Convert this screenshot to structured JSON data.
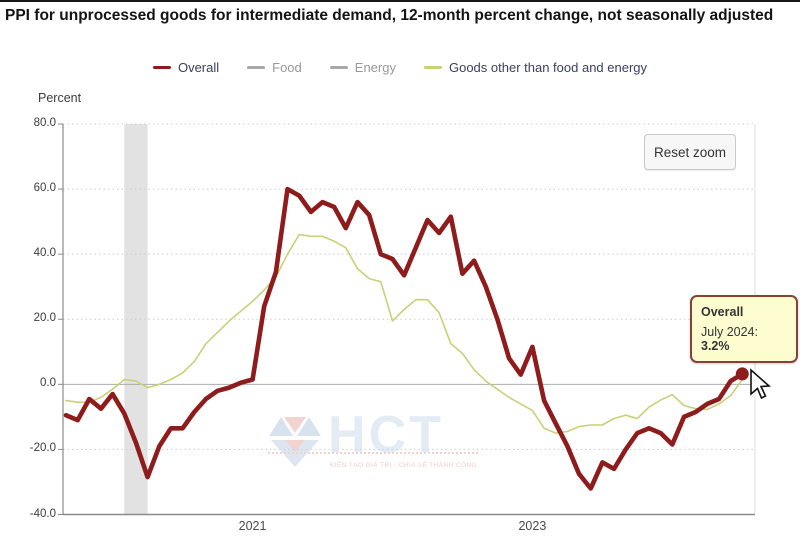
{
  "title": "PPI for unprocessed goods for intermediate demand, 12-month percent change, not seasonally adjusted",
  "legend": {
    "items": [
      {
        "label": "Overall",
        "slug": "overall",
        "swatch_color": "#8e1c1c",
        "text_color": "#3a3f5f",
        "active": true
      },
      {
        "label": "Food",
        "slug": "food",
        "swatch_color": "#a8a8a8",
        "text_color": "#999999",
        "active": false
      },
      {
        "label": "Energy",
        "slug": "energy",
        "swatch_color": "#a8a8a8",
        "text_color": "#999999",
        "active": false
      },
      {
        "label": "Goods other than food and energy",
        "slug": "goods-other",
        "swatch_color": "#c9d178",
        "text_color": "#3a3f5f",
        "active": true
      }
    ]
  },
  "y_axis": {
    "title": "Percent",
    "ticks": [
      "80.0",
      "60.0",
      "40.0",
      "20.0",
      "0.0",
      "-20.0",
      "-40.0"
    ]
  },
  "x_axis": {
    "ticks": [
      "2021",
      "2023"
    ]
  },
  "reset_zoom_label": "Reset zoom",
  "tooltip": {
    "series": "Overall",
    "date_label": "July 2024:",
    "value": "3.2%"
  },
  "watermark": {
    "text": "HCT",
    "tagline": "KIẾN TẠO GIÁ TRỊ - CHIA SẺ THÀNH CÔNG"
  },
  "chart_data": {
    "type": "line",
    "title": "PPI for unprocessed goods for intermediate demand, 12-month percent change, not seasonally adjusted",
    "ylabel": "Percent",
    "ylim": [
      -40,
      80
    ],
    "y_ticks": [
      80,
      60,
      40,
      20,
      0,
      -20,
      -40
    ],
    "grid": "horizontal-dotted",
    "legend_position": "top",
    "categories": [
      "2019-09",
      "2019-10",
      "2019-11",
      "2019-12",
      "2020-01",
      "2020-02",
      "2020-03",
      "2020-04",
      "2020-05",
      "2020-06",
      "2020-07",
      "2020-08",
      "2020-09",
      "2020-10",
      "2020-11",
      "2020-12",
      "2021-01",
      "2021-02",
      "2021-03",
      "2021-04",
      "2021-05",
      "2021-06",
      "2021-07",
      "2021-08",
      "2021-09",
      "2021-10",
      "2021-11",
      "2021-12",
      "2022-01",
      "2022-02",
      "2022-03",
      "2022-04",
      "2022-05",
      "2022-06",
      "2022-07",
      "2022-08",
      "2022-09",
      "2022-10",
      "2022-11",
      "2022-12",
      "2023-01",
      "2023-02",
      "2023-03",
      "2023-04",
      "2023-05",
      "2023-06",
      "2023-07",
      "2023-08",
      "2023-09",
      "2023-10",
      "2023-11",
      "2023-12",
      "2024-01",
      "2024-02",
      "2024-03",
      "2024-04",
      "2024-05",
      "2024-06",
      "2024-07"
    ],
    "series": [
      {
        "name": "Overall",
        "slug": "overall",
        "color": "#8e1c1c",
        "visible": true,
        "values": [
          -9.5,
          -11,
          -4.5,
          -7.5,
          -3,
          -9,
          -18,
          -28.5,
          -19,
          -13.5,
          -13.5,
          -8.5,
          -4.5,
          -2,
          -1,
          0.5,
          1.5,
          24,
          34.5,
          60,
          58,
          53,
          56,
          54.5,
          48,
          56,
          52,
          40,
          38.5,
          33.5,
          42,
          50.5,
          46.5,
          51.5,
          34,
          38,
          30,
          20,
          8,
          3,
          11.5,
          -5,
          -12,
          -19,
          -27.5,
          -32,
          -24,
          -26,
          -20,
          -15,
          -13.5,
          -15,
          -18.5,
          -10,
          -8.5,
          -6,
          -4.5,
          1,
          3.2
        ]
      },
      {
        "name": "Food",
        "slug": "food",
        "color": "#a8a8a8",
        "visible": false,
        "values": []
      },
      {
        "name": "Energy",
        "slug": "energy",
        "color": "#a8a8a8",
        "visible": false,
        "values": []
      },
      {
        "name": "Goods other than food and energy",
        "slug": "goods-other",
        "color": "#c9d178",
        "visible": true,
        "values": [
          -5,
          -5.5,
          -5.5,
          -4,
          -1.5,
          1.5,
          1,
          -1,
          0,
          1.5,
          3.5,
          7,
          12.5,
          16,
          19.5,
          22.5,
          25.5,
          29,
          33,
          40,
          46,
          45.5,
          45.5,
          44,
          42,
          35.5,
          32.5,
          31.5,
          19.5,
          23,
          26,
          26,
          22,
          12.5,
          9.5,
          4.5,
          1,
          -1.5,
          -4,
          -6,
          -8,
          -13.5,
          -15,
          -14.5,
          -13,
          -12.5,
          -12.5,
          -10.5,
          -9.5,
          -10.5,
          -7,
          -4.8,
          -3.2,
          -6.5,
          -7.5,
          -7.7,
          -6,
          -3.5,
          1.5
        ]
      }
    ],
    "x_ticks": [
      {
        "label": "2021",
        "index": 16
      },
      {
        "label": "2023",
        "index": 40
      }
    ],
    "recession_band": {
      "from_index": 5,
      "to_index": 7
    },
    "annotations": {
      "marker": {
        "series": "Overall",
        "category": "2024-07",
        "value": 3.2
      }
    }
  }
}
